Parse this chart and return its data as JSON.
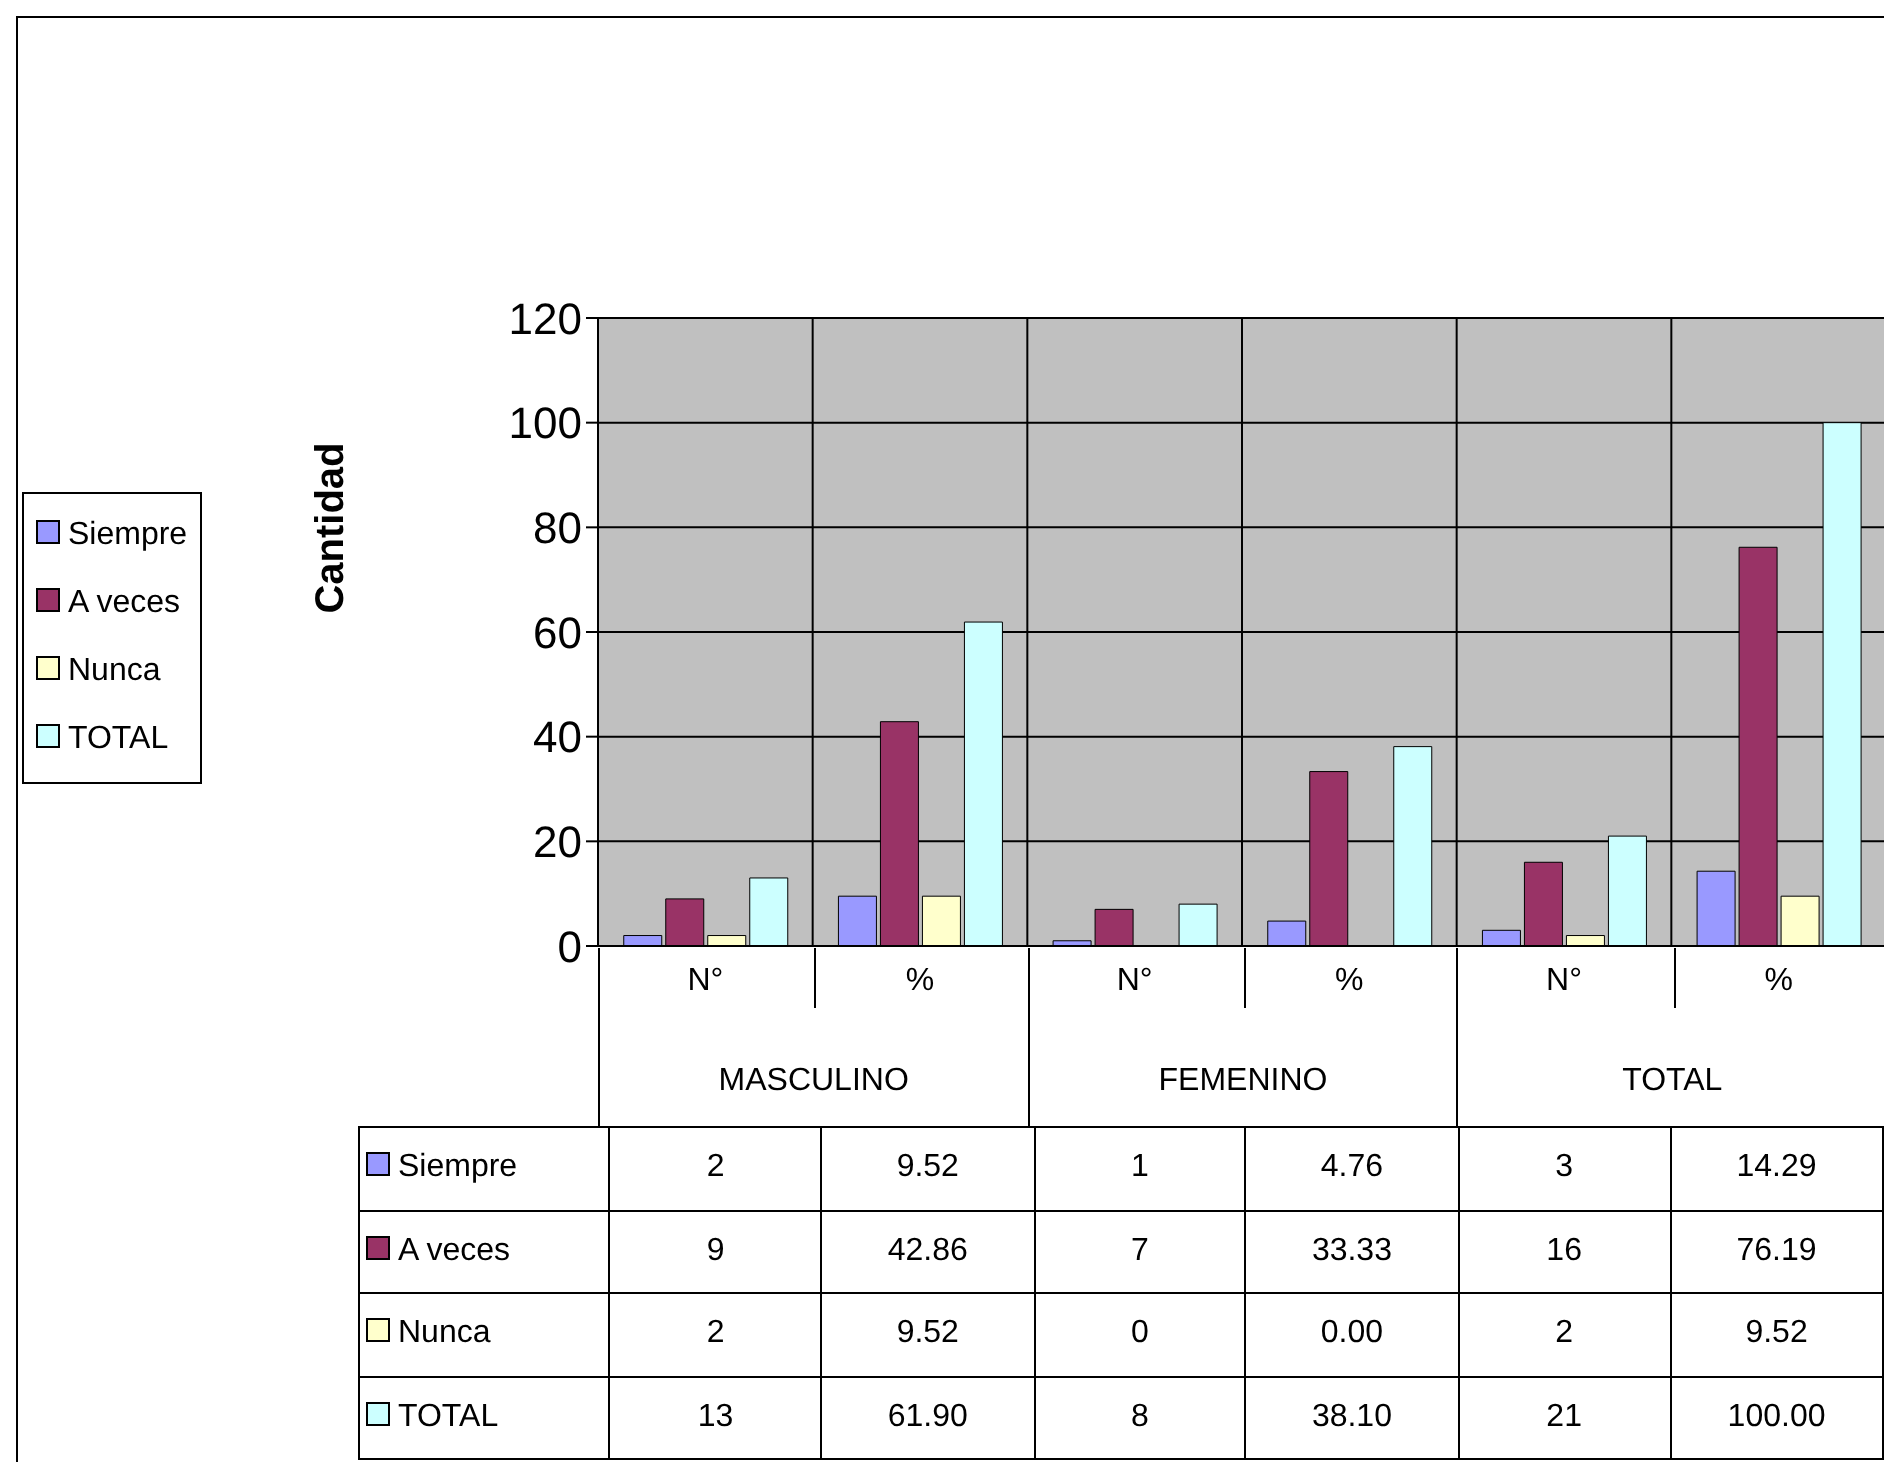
{
  "chart_data": {
    "type": "bar",
    "ylabel": "Cantidad",
    "categories": [
      "N°",
      "%",
      "N°",
      "%",
      "N°",
      "%"
    ],
    "annotations": [
      "MASCULINO",
      "FEMENINO",
      "TOTAL"
    ],
    "series": [
      {
        "name": "Siempre",
        "color": "#9999ff",
        "values": [
          2,
          9.52,
          1,
          4.76,
          3,
          14.29
        ],
        "value_labels": [
          "2",
          "9.52",
          "1",
          "4.76",
          "3",
          "14.29"
        ]
      },
      {
        "name": "A veces",
        "color": "#993366",
        "values": [
          9,
          42.86,
          7,
          33.33,
          16,
          76.19
        ],
        "value_labels": [
          "9",
          "42.86",
          "7",
          "33.33",
          "16",
          "76.19"
        ]
      },
      {
        "name": "Nunca",
        "color": "#ffffcc",
        "values": [
          2,
          9.52,
          0,
          0,
          2,
          9.52
        ],
        "value_labels": [
          "2",
          "9.52",
          "0",
          "0.00",
          "2",
          "9.52"
        ]
      },
      {
        "name": "TOTAL",
        "color": "#ccffff",
        "values": [
          13,
          61.9,
          8,
          38.1,
          21,
          100
        ],
        "value_labels": [
          "13",
          "61.90",
          "8",
          "38.10",
          "21",
          "100.00"
        ]
      }
    ],
    "ylim": [
      0,
      120
    ],
    "yticks": [
      0,
      20,
      40,
      60,
      80,
      100,
      120
    ],
    "grid": true,
    "legend": "left"
  }
}
